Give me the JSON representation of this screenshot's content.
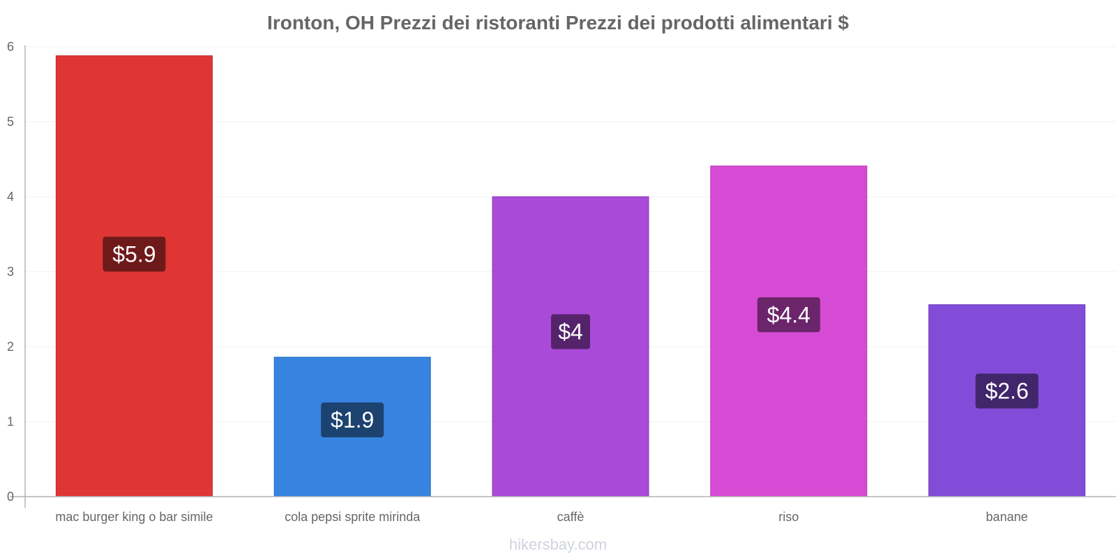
{
  "chart_data": {
    "type": "bar",
    "title": "Ironton, OH Prezzi dei ristoranti Prezzi dei prodotti alimentari $",
    "categories": [
      "mac burger king o bar simile",
      "cola pepsi sprite mirinda",
      "caffè",
      "riso",
      "banane"
    ],
    "values": [
      5.88,
      1.86,
      4.0,
      4.41,
      2.56
    ],
    "data_labels": [
      "$5.9",
      "$1.9",
      "$4",
      "$4.4",
      "$2.6"
    ],
    "xlabel": "",
    "ylabel": "",
    "ylim": [
      0,
      6
    ],
    "yticks": [
      0,
      1,
      2,
      3,
      4,
      5,
      6
    ],
    "grid": true,
    "legend": "none",
    "colors": {
      "bars": [
        "#e03535",
        "#3684e0",
        "#a94ad8",
        "#d64bd4",
        "#824cd8"
      ],
      "bar_borders": [
        "#c42a2a",
        "#2a6bbd",
        "#8c36b8",
        "#b637b4",
        "#6a38b8"
      ],
      "label_boxes": [
        "#6e1a1a",
        "#1c4270",
        "#55236b",
        "#6b256a",
        "#41266b"
      ],
      "axis": "#b3b3b3",
      "grid": "#f2f2f2",
      "text": "#666666"
    }
  },
  "watermark": "hikersbay.com"
}
